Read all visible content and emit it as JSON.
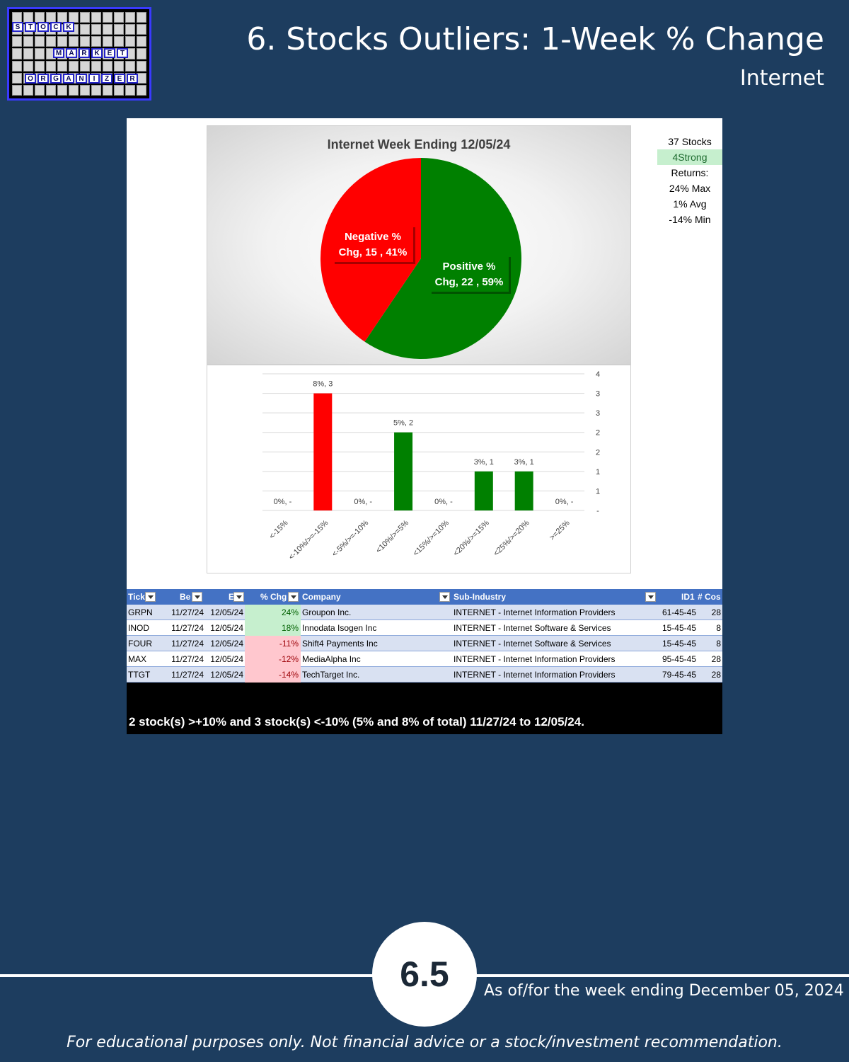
{
  "logo": {
    "row1": [
      "S",
      "T",
      "O",
      "C",
      "K"
    ],
    "row2": [
      "M",
      "A",
      "R",
      "K",
      "E",
      "T"
    ],
    "row3": [
      "O",
      "R",
      "G",
      "A",
      "N",
      "I",
      "Z",
      "E",
      "R"
    ]
  },
  "header": {
    "title": "6. Stocks Outliers: 1-Week % Change",
    "subtitle": "Internet"
  },
  "stats": {
    "stocks": "37 Stocks",
    "strength": "4Strong",
    "returns_label": "Returns:",
    "max": "24% Max",
    "avg": "1% Avg",
    "min": "-14% Min"
  },
  "colors": {
    "negative": "#ff0000",
    "positive": "#008000"
  },
  "chart_data": [
    {
      "type": "pie",
      "title": "Internet Week Ending 12/05/24",
      "slices": [
        {
          "name": "Negative % Chg",
          "count": 15,
          "percent": 41,
          "label_line1": "Negative %",
          "label_line2": "Chg,  15 , 41%",
          "color": "#ff0000"
        },
        {
          "name": "Positive % Chg",
          "count": 22,
          "percent": 59,
          "label_line1": "Positive %",
          "label_line2": "Chg,  22 , 59%",
          "color": "#008000"
        }
      ]
    },
    {
      "type": "bar",
      "categories": [
        "<-15%",
        "<-10%/>=-15%",
        "<-5%/>=-10%",
        "<10%/>=5%",
        "<15%/>=10%",
        "<20%/>=15%",
        "<25%/>=20%",
        ">=25%"
      ],
      "values": [
        0,
        3,
        0,
        2,
        0,
        1,
        1,
        0
      ],
      "data_labels": [
        "0%,  -",
        "8%,  3",
        "0%,  -",
        "5%,  2",
        "0%,  -",
        "3%,  1",
        "3%,  1",
        "0%,  -"
      ],
      "colors": [
        "#ff0000",
        "#ff0000",
        "#ff0000",
        "#008000",
        "#008000",
        "#008000",
        "#008000",
        "#008000"
      ],
      "ylim": [
        0,
        3.5
      ],
      "y_tick_values": [
        0,
        0.5,
        1,
        1.5,
        2,
        2.5,
        3,
        3.5
      ],
      "y_tick_labels": [
        "-",
        "1",
        "1",
        "2",
        "2",
        "3",
        "3",
        "4"
      ],
      "grid": true
    }
  ],
  "table": {
    "headers": [
      "Tick",
      "Be",
      "E",
      "% Chg",
      "Company",
      "Sub-Industry",
      "ID1",
      "# Cos"
    ],
    "rows": [
      {
        "ticker": "GRPN",
        "begin": "11/27/24",
        "end": "12/05/24",
        "chg": "24%",
        "sign": "pos",
        "company": "Groupon Inc.",
        "sub": "INTERNET - Internet Information Providers",
        "id1": "61-45-45",
        "cos": "28"
      },
      {
        "ticker": "INOD",
        "begin": "11/27/24",
        "end": "12/05/24",
        "chg": "18%",
        "sign": "pos",
        "company": "Innodata Isogen Inc",
        "sub": "INTERNET - Internet Software & Services",
        "id1": "15-45-45",
        "cos": "8"
      },
      {
        "ticker": "FOUR",
        "begin": "11/27/24",
        "end": "12/05/24",
        "chg": "-11%",
        "sign": "neg",
        "company": "Shift4 Payments Inc",
        "sub": "INTERNET - Internet Software & Services",
        "id1": "15-45-45",
        "cos": "8"
      },
      {
        "ticker": "MAX",
        "begin": "11/27/24",
        "end": "12/05/24",
        "chg": "-12%",
        "sign": "neg",
        "company": "MediaAlpha Inc",
        "sub": "INTERNET - Internet Information Providers",
        "id1": "95-45-45",
        "cos": "28"
      },
      {
        "ticker": "TTGT",
        "begin": "11/27/24",
        "end": "12/05/24",
        "chg": "-14%",
        "sign": "neg",
        "company": "TechTarget Inc.",
        "sub": "INTERNET - Internet Information Providers",
        "id1": "79-45-45",
        "cos": "28"
      }
    ]
  },
  "summary": "2 stock(s) >+10% and 3 stock(s) <-10% (5% and 8% of total) 11/27/24 to 12/05/24.",
  "footer": {
    "badge": "6.5",
    "as_of": "As of/for the week ending December 05, 2024",
    "disclaimer": "For educational purposes only. Not financial advice or a stock/investment recommendation."
  }
}
